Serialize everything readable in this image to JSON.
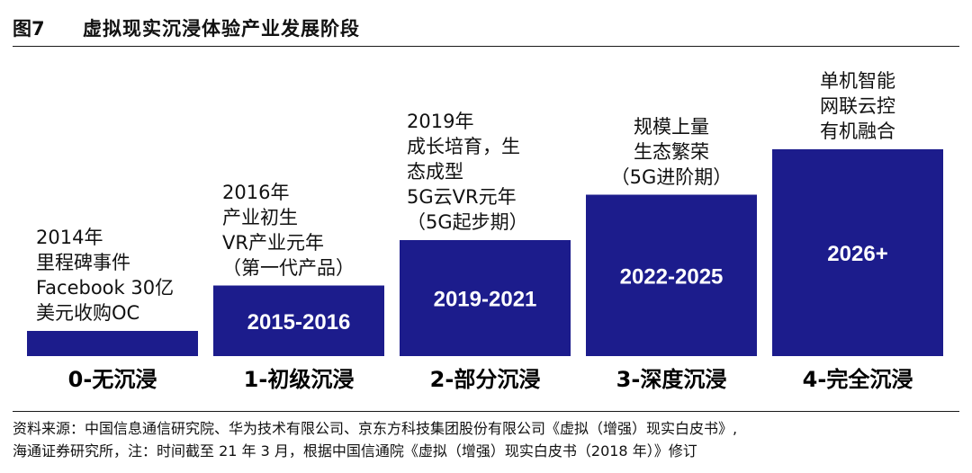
{
  "figure": {
    "number": "图7",
    "title": "虚拟现实沉浸体验产业发展阶段"
  },
  "chart_data": {
    "type": "bar",
    "title": "虚拟现实沉浸体验产业发展阶段",
    "categories": [
      "0-无沉浸",
      "1-初级沉浸",
      "2-部分沉浸",
      "3-深度沉浸",
      "4-完全沉浸"
    ],
    "values": [
      1,
      2,
      3,
      4,
      5
    ],
    "bar_labels": [
      "",
      "2015-2016",
      "2019-2021",
      "2022-2025",
      "2026+"
    ],
    "descriptions": [
      [
        "2014年",
        "里程碑事件",
        "Facebook 30亿",
        "美元收购OC"
      ],
      [
        "2016年",
        "产业初生",
        "VR产业元年",
        "（第一代产品）"
      ],
      [
        "2019年",
        "成长培育，生",
        "态成型",
        "5G云VR元年",
        "（5G起步期）"
      ],
      [
        "规模上量",
        "生态繁荣",
        "（5G进阶期）"
      ],
      [
        "单机智能",
        "网联云控",
        "有机融合"
      ]
    ],
    "bar_color": "#1c1c8c",
    "bar_label_color": "#ffffff",
    "grid": false,
    "legend": "none"
  },
  "source": {
    "line1": "资料来源：中国信息通信研究院、华为技术有限公司、京东方科技集团股份有限公司《虚拟（增强）现实白皮书》,",
    "line2": "海通证券研究所，注：时间截至 21 年 3 月，根据中国信通院《虚拟（增强）现实白皮书（2018 年）》修订"
  }
}
